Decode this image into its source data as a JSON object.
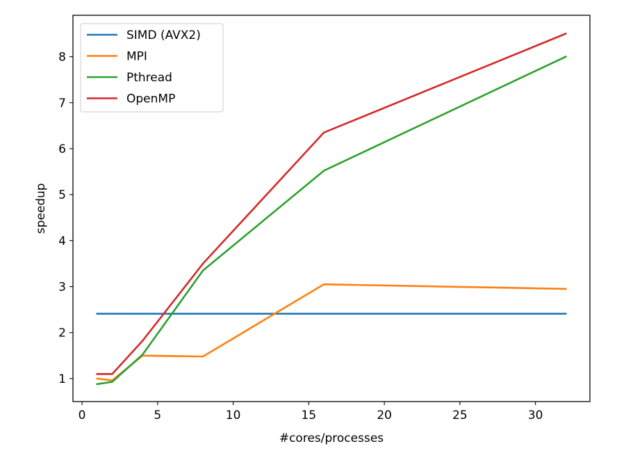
{
  "chart_data": {
    "type": "line",
    "title": "",
    "xlabel": "#cores/processes",
    "ylabel": "speedup",
    "xlim": [
      -0.6,
      33.6
    ],
    "ylim": [
      0.5,
      8.9
    ],
    "xticks": [
      0,
      5,
      10,
      15,
      20,
      25,
      30
    ],
    "yticks": [
      1,
      2,
      3,
      4,
      5,
      6,
      7,
      8
    ],
    "grid": false,
    "legend_position": "upper-left",
    "series": [
      {
        "name": "SIMD (AVX2)",
        "color": "#1f77b4",
        "x": [
          1,
          32
        ],
        "y": [
          2.41,
          2.41
        ]
      },
      {
        "name": "MPI",
        "color": "#ff7f0e",
        "x": [
          1,
          2,
          4,
          8,
          16,
          32
        ],
        "y": [
          1.0,
          0.96,
          1.5,
          1.48,
          3.05,
          2.95
        ]
      },
      {
        "name": "Pthread",
        "color": "#2ca02c",
        "x": [
          1,
          2,
          4,
          8,
          16,
          32
        ],
        "y": [
          0.88,
          0.93,
          1.52,
          3.35,
          5.52,
          8.0
        ]
      },
      {
        "name": "OpenMP",
        "color": "#d62728",
        "x": [
          1,
          2,
          4,
          8,
          16,
          32
        ],
        "y": [
          1.1,
          1.1,
          1.82,
          3.5,
          6.35,
          8.5
        ]
      }
    ]
  }
}
